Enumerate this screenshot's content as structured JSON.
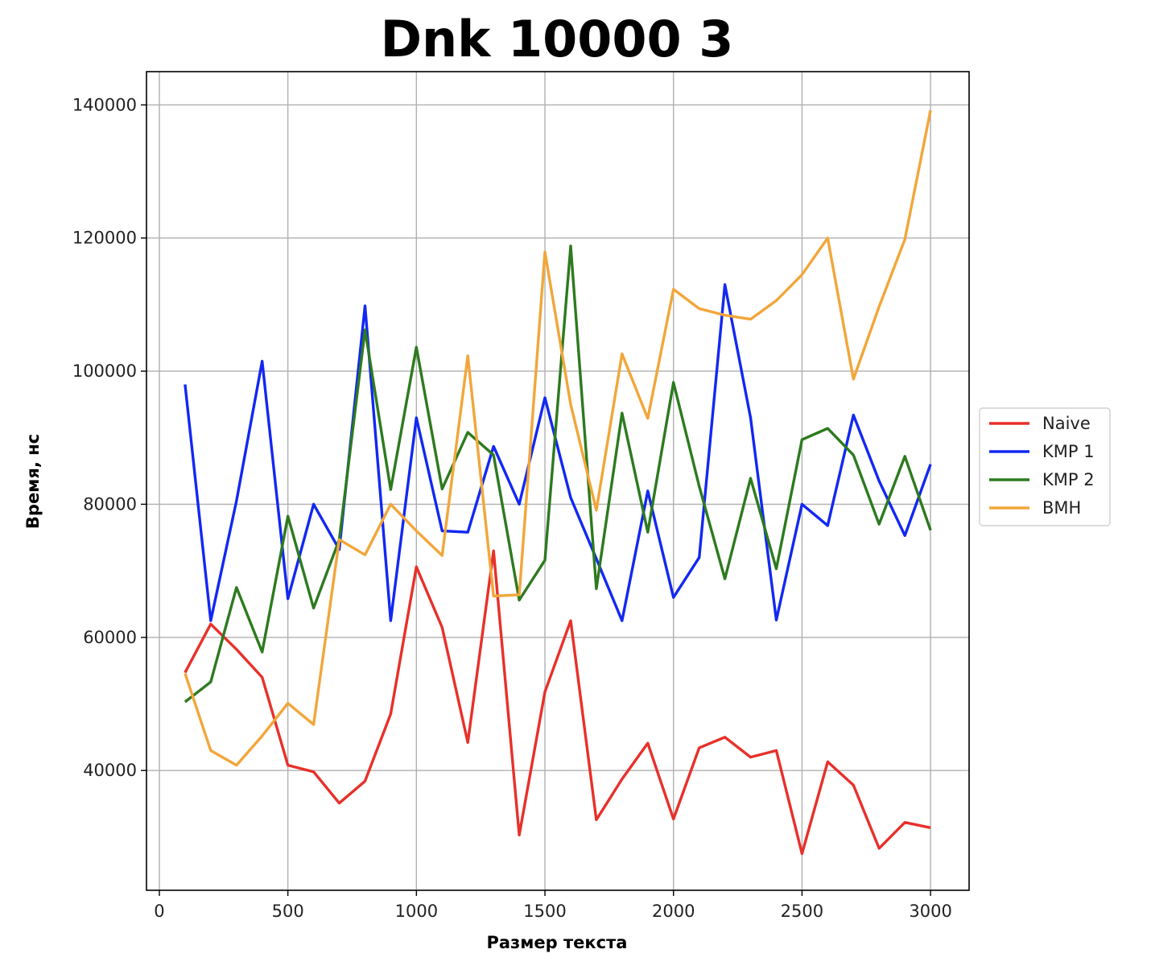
{
  "chart_data": {
    "type": "line",
    "title": "Dnk 10000 3",
    "xlabel": "Размер текста",
    "ylabel": "Время, нс",
    "xlim": [
      -50,
      3150
    ],
    "ylim": [
      22000,
      145000
    ],
    "xticks": [
      0,
      500,
      1000,
      1500,
      2000,
      2500,
      3000
    ],
    "yticks": [
      40000,
      60000,
      80000,
      100000,
      120000,
      140000
    ],
    "grid": true,
    "legend_position": "right-center",
    "x": [
      100,
      200,
      300,
      400,
      500,
      600,
      700,
      800,
      900,
      1000,
      1100,
      1200,
      1300,
      1400,
      1500,
      1600,
      1700,
      1800,
      1900,
      2000,
      2100,
      2200,
      2300,
      2400,
      2500,
      2600,
      2700,
      2800,
      2900,
      3000
    ],
    "series": [
      {
        "name": "Naive",
        "color": "#e8302a",
        "values": [
          54700,
          62000,
          58200,
          54000,
          40800,
          39800,
          35100,
          38400,
          48500,
          70600,
          61500,
          44200,
          73000,
          30300,
          51800,
          62500,
          32600,
          38700,
          44100,
          32700,
          43400,
          45000,
          42000,
          43000,
          27500,
          41300,
          37800,
          28300,
          32200,
          31400
        ]
      },
      {
        "name": "KMP 1",
        "color": "#1228f2",
        "values": [
          98000,
          62500,
          80500,
          101500,
          65800,
          80000,
          73200,
          109800,
          62500,
          93000,
          76000,
          75800,
          88700,
          80000,
          96000,
          81000,
          71800,
          62500,
          82000,
          66000,
          72000,
          113000,
          93000,
          62600,
          80000,
          76800,
          93400,
          83500,
          75300,
          86000
        ]
      },
      {
        "name": "KMP 2",
        "color": "#2d7a1f",
        "values": [
          50300,
          53300,
          67500,
          57800,
          78200,
          64400,
          74700,
          106200,
          82200,
          103600,
          82300,
          90800,
          87400,
          65600,
          71600,
          118800,
          67300,
          93700,
          75800,
          98300,
          82700,
          68800,
          83900,
          70300,
          89700,
          91400,
          87400,
          77000,
          87200,
          76100
        ]
      },
      {
        "name": "BMH",
        "color": "#f2a63a",
        "values": [
          54600,
          43000,
          40800,
          45200,
          50100,
          46900,
          74700,
          72400,
          80000,
          76000,
          72300,
          102300,
          66200,
          66400,
          117900,
          95000,
          79100,
          102600,
          92900,
          112300,
          109400,
          108400,
          107800,
          110600,
          114500,
          120000,
          98800,
          109700,
          119800,
          139200
        ]
      }
    ]
  }
}
